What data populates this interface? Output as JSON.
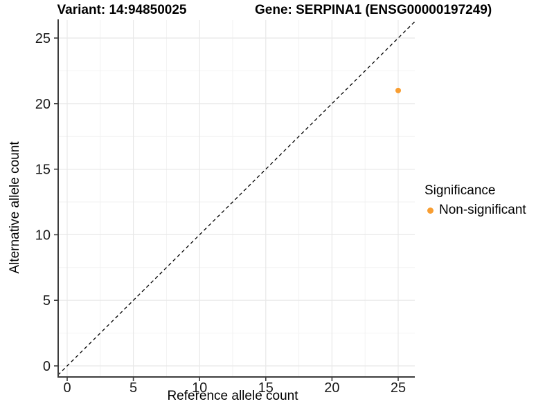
{
  "chart_data": {
    "type": "scatter",
    "titles": [
      "Variant: 14:94850025",
      "Gene: SERPINA1 (ENSG00000197249)"
    ],
    "xlabel": "Reference allele count",
    "ylabel": "Alternative allele count",
    "xlim": [
      -0.7,
      26.4
    ],
    "ylim": [
      -0.9,
      26.4
    ],
    "x_ticks": [
      0,
      5,
      10,
      15,
      20,
      25
    ],
    "y_ticks": [
      0,
      5,
      10,
      15,
      20,
      25
    ],
    "x_minor_ticks": [
      2.5,
      7.5,
      12.5,
      17.5,
      22.5
    ],
    "y_minor_ticks": [
      2.5,
      7.5,
      12.5,
      17.5,
      22.5
    ],
    "grid": "major and minor gridlines, left+bottom axis lines only",
    "reference_line": {
      "kind": "identity y=x",
      "style": "dashed",
      "color": "#000000"
    },
    "series": [
      {
        "name": "Non-significant",
        "color": "#F89E32",
        "marker": "circle",
        "points": [
          {
            "x": 25,
            "y": 21
          }
        ]
      }
    ],
    "legend": {
      "title": "Significance",
      "position": "right"
    }
  },
  "colors": {
    "background": "#FFFFFF",
    "text": "#000000",
    "tick_text": "#1A1A1A",
    "axis_line": "#3C3C3C",
    "grid_major": "#E8E8E8",
    "grid_minor": "#F2F2F2",
    "point_orange": "#F89E32",
    "dashed_line": "#000000"
  }
}
